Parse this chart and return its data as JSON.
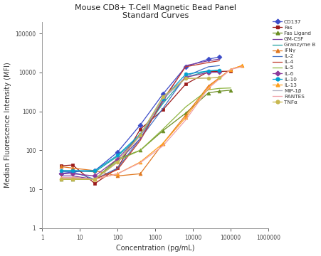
{
  "title": "Mouse CD8+ T-Cell Magnetic Bead Panel\nStandard Curves",
  "xlabel": "Concentration (pg/mL)",
  "ylabel": "Median Fluorescence Intensity (MFI)",
  "bg_color": "#FFFFFF",
  "series": {
    "CD137": {
      "color": "#3B4BC8",
      "marker": "D",
      "x": [
        3.2,
        6.4,
        25,
        100,
        400,
        1600,
        6400,
        25600,
        50000
      ],
      "y": [
        25,
        28,
        30,
        90,
        450,
        2800,
        14000,
        22000,
        25000
      ]
    },
    "Fas": {
      "color": "#9B1B1B",
      "marker": "s",
      "x": [
        3.2,
        6.4,
        25,
        100,
        400,
        1600,
        6400,
        25600,
        100000
      ],
      "y": [
        40,
        42,
        14,
        35,
        350,
        1100,
        5000,
        10500,
        10800
      ]
    },
    "Fas Ligand": {
      "color": "#6B8E23",
      "marker": "^",
      "x": [
        3.2,
        6.4,
        25,
        100,
        400,
        1600,
        6400,
        25600,
        50000,
        100000
      ],
      "y": [
        18,
        18,
        18,
        60,
        100,
        320,
        900,
        3000,
        3300,
        3500
      ]
    },
    "GM-CSF": {
      "color": "#7B3FA0",
      "marker": "None",
      "x": [
        3.2,
        6.4,
        25,
        100,
        400,
        1600,
        6400,
        25600,
        50000
      ],
      "y": [
        22,
        22,
        18,
        50,
        200,
        1800,
        15000,
        20000,
        22000
      ]
    },
    "Granzyme B": {
      "color": "#20A0A0",
      "marker": "None",
      "x": [
        3.2,
        6.4,
        25,
        100,
        400,
        1600,
        6400,
        25600,
        50000
      ],
      "y": [
        30,
        30,
        28,
        70,
        240,
        1600,
        7500,
        11000,
        11500
      ]
    },
    "IFNy": {
      "color": "#E07820",
      "marker": "^",
      "x": [
        3.2,
        6.4,
        25,
        100,
        400,
        1600,
        6400,
        25600,
        100000,
        200000
      ],
      "y": [
        38,
        35,
        30,
        22,
        25,
        150,
        800,
        4500,
        12000,
        15000
      ]
    },
    "IL-2": {
      "color": "#4472C4",
      "marker": "None",
      "x": [
        3.2,
        6.4,
        25,
        100,
        400,
        1600,
        6400,
        25600,
        50000
      ],
      "y": [
        28,
        28,
        18,
        35,
        200,
        1200,
        8000,
        14000,
        15000
      ]
    },
    "IL-4": {
      "color": "#C0392B",
      "marker": "None",
      "x": [
        3.2,
        6.4,
        25,
        100,
        400,
        1600,
        6400,
        25600,
        50000
      ],
      "y": [
        20,
        20,
        18,
        32,
        180,
        2000,
        14000,
        18000,
        20000
      ]
    },
    "IL-5": {
      "color": "#8DB43F",
      "marker": "None",
      "x": [
        3.2,
        6.4,
        25,
        100,
        400,
        1600,
        6400,
        25600,
        50000,
        100000
      ],
      "y": [
        18,
        18,
        18,
        55,
        100,
        350,
        1300,
        3600,
        3900,
        4000
      ]
    },
    "IL-6": {
      "color": "#8B3A9B",
      "marker": "D",
      "x": [
        3.2,
        6.4,
        25,
        100,
        400,
        1600,
        6400,
        25600,
        50000
      ],
      "y": [
        25,
        25,
        22,
        60,
        240,
        2100,
        7500,
        10000,
        10200
      ]
    },
    "IL-10": {
      "color": "#00A0D0",
      "marker": "o",
      "x": [
        3.2,
        6.4,
        25,
        100,
        400,
        1600,
        6400,
        25600,
        50000
      ],
      "y": [
        30,
        30,
        30,
        75,
        260,
        2100,
        9000,
        11000,
        11200
      ]
    },
    "IL-13": {
      "color": "#FFA020",
      "marker": "^",
      "x": [
        3.2,
        6.4,
        25,
        100,
        400,
        1600,
        6400,
        25600,
        100000,
        200000
      ],
      "y": [
        20,
        20,
        18,
        25,
        50,
        150,
        700,
        4200,
        12000,
        15000
      ]
    },
    "MIP-1b": {
      "color": "#B0B0C0",
      "marker": "None",
      "x": [
        3.2,
        6.4,
        25,
        100,
        400,
        1600,
        6400,
        25600,
        50000
      ],
      "y": [
        20,
        20,
        18,
        50,
        240,
        2200,
        7000,
        7200,
        7500
      ]
    },
    "RANTES": {
      "color": "#F0A0A8",
      "marker": "None",
      "x": [
        3.2,
        6.4,
        25,
        100,
        400,
        1600,
        6400,
        25600,
        100000,
        200000
      ],
      "y": [
        20,
        20,
        18,
        25,
        48,
        130,
        600,
        3900,
        12000,
        14000
      ]
    },
    "TNFa": {
      "color": "#C8B850",
      "marker": "o",
      "x": [
        3.2,
        6.4,
        25,
        100,
        400,
        1600,
        6400,
        25600,
        50000
      ],
      "y": [
        18,
        18,
        18,
        50,
        250,
        2400,
        7000,
        7200,
        7400
      ]
    }
  },
  "legend_entries": [
    [
      "CD137",
      "#3B4BC8",
      "D"
    ],
    [
      "Fas",
      "#9B1B1B",
      "s"
    ],
    [
      "Fas Ligand",
      "#6B8E23",
      "^"
    ],
    [
      "GM-CSF",
      "#7B3FA0",
      "None"
    ],
    [
      "Granzyme B",
      "#20A0A0",
      "None"
    ],
    [
      "IFNγ",
      "#E07820",
      "^"
    ],
    [
      "IL-2",
      "#4472C4",
      "None"
    ],
    [
      "IL-4",
      "#C0392B",
      "None"
    ],
    [
      "IL-5",
      "#8DB43F",
      "None"
    ],
    [
      "IL-6",
      "#8B3A9B",
      "D"
    ],
    [
      "IL-10",
      "#00A0D0",
      "o"
    ],
    [
      "IL-13",
      "#FFA020",
      "^"
    ],
    [
      "MIP-1β",
      "#B0B0C0",
      "None"
    ],
    [
      "RANTES",
      "#F0A0A8",
      "None"
    ],
    [
      "TNFα",
      "#C8B850",
      "o"
    ]
  ],
  "xlim": [
    1,
    1000000
  ],
  "ylim": [
    1,
    200000
  ]
}
